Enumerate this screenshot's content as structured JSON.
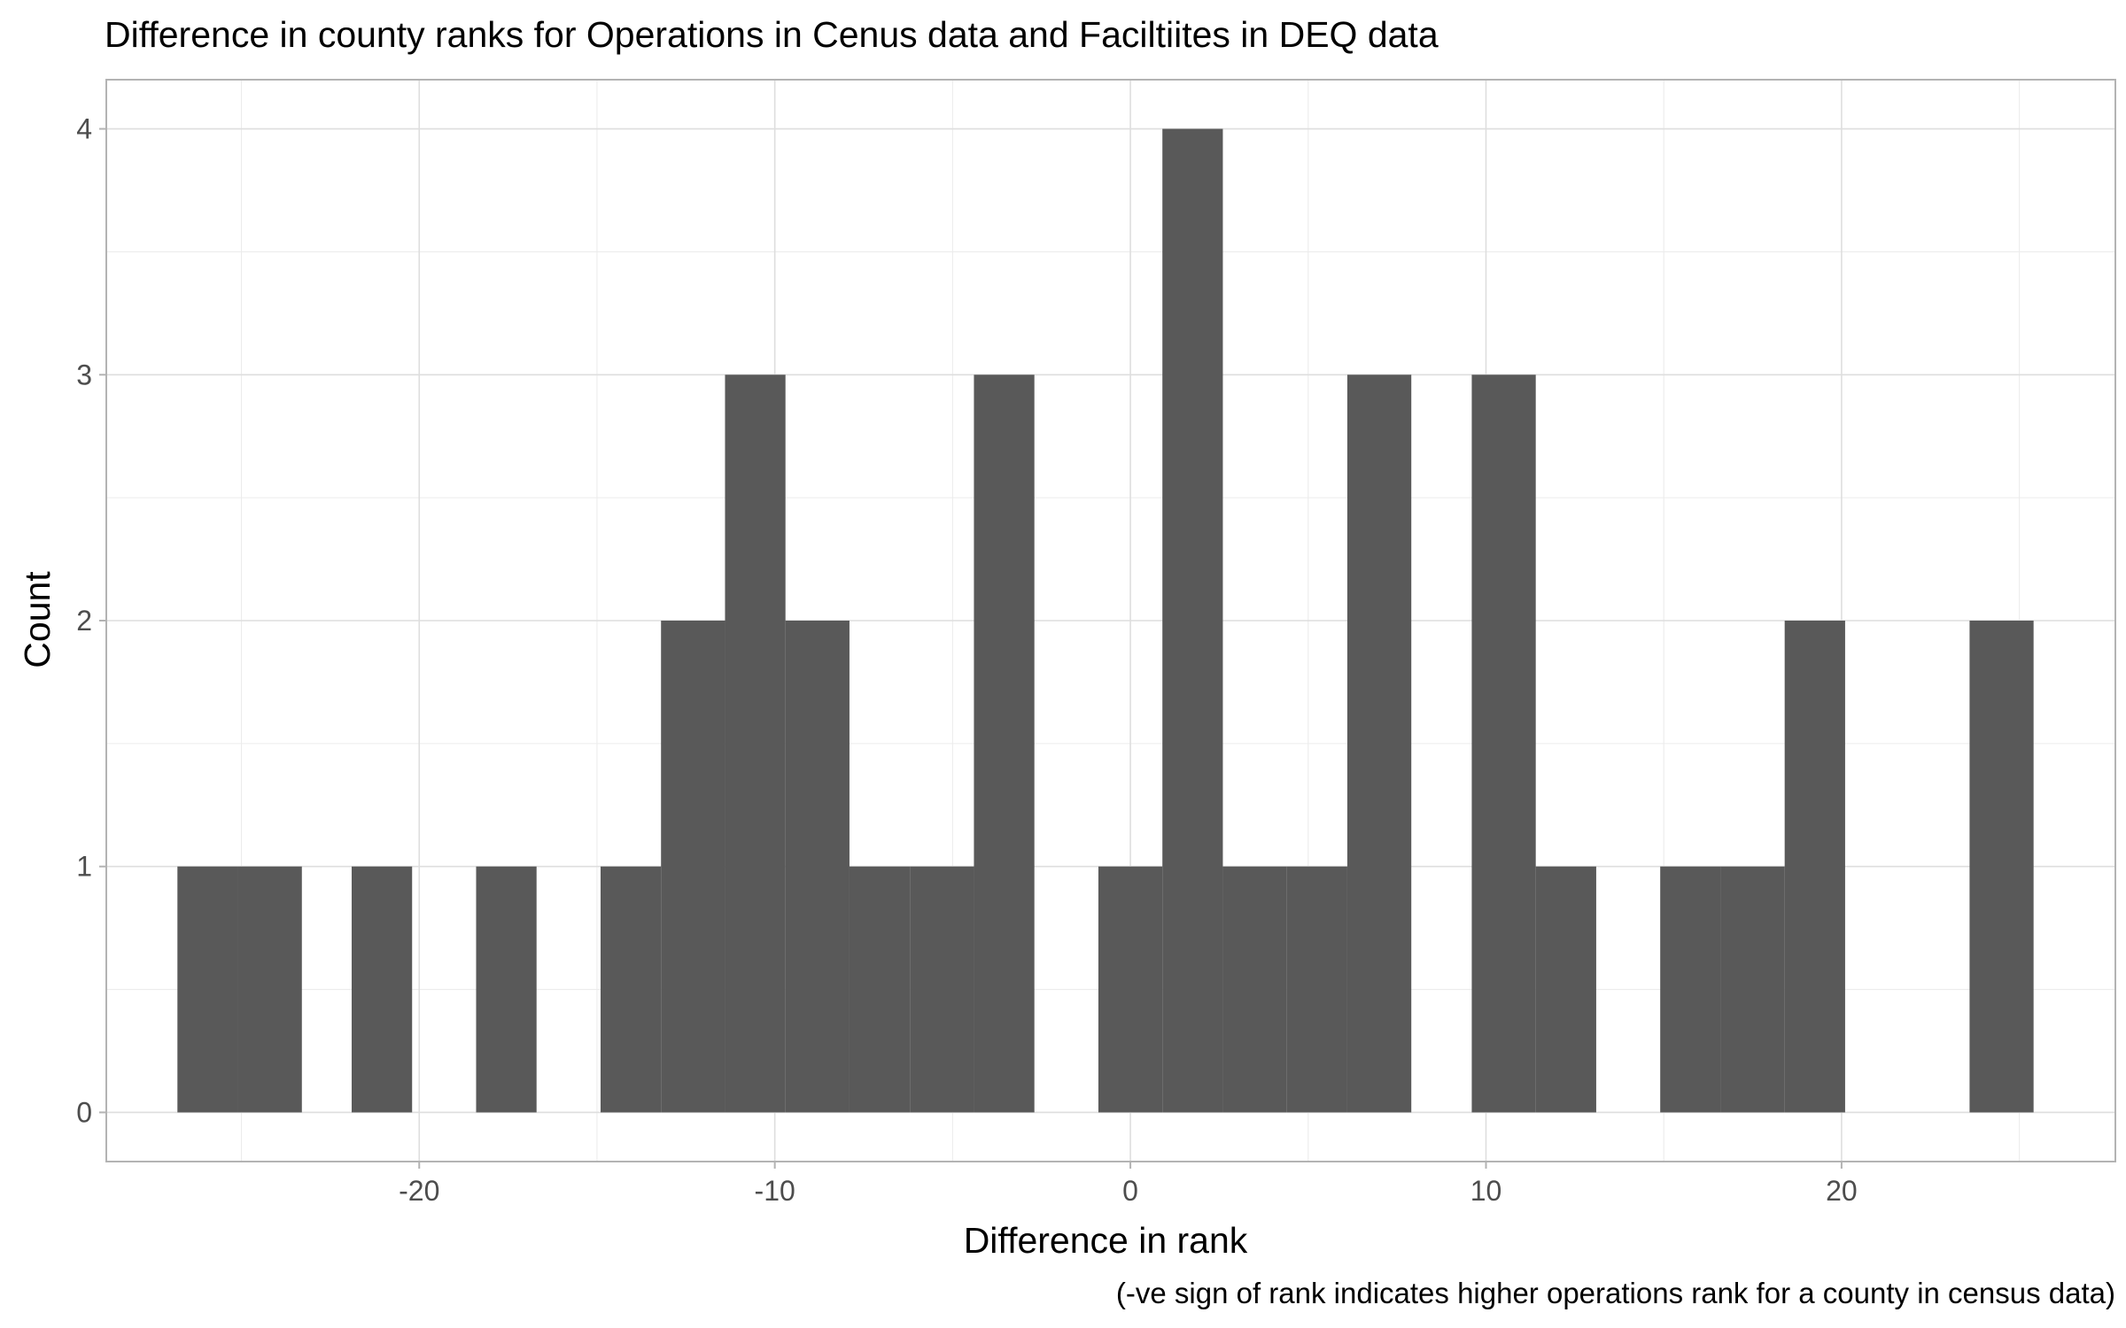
{
  "chart_data": {
    "type": "bar",
    "subtype": "histogram",
    "title": "Difference in county ranks for Operations in Cenus data and Faciltiites in DEQ data",
    "xlabel": "Difference in rank",
    "ylabel": "Count",
    "caption": "(-ve sign of rank indicates higher operations rank for a county in census data)",
    "xlim": [
      -28.8,
      27.7
    ],
    "ylim": [
      -0.2,
      4.2
    ],
    "x_ticks": [
      -20,
      -10,
      0,
      10,
      20
    ],
    "x_tick_labels": [
      "-20",
      "-10",
      "0",
      "10",
      "20"
    ],
    "y_ticks": [
      0,
      1,
      2,
      3,
      4
    ],
    "y_tick_labels": [
      "0",
      "1",
      "2",
      "3",
      "4"
    ],
    "grid": true,
    "bar_color": "#595959",
    "bins": [
      {
        "x0": -26.8,
        "x1": -25.1,
        "count": 1
      },
      {
        "x0": -25.1,
        "x1": -23.3,
        "count": 1
      },
      {
        "x0": -23.3,
        "x1": -21.9,
        "count": 0
      },
      {
        "x0": -21.9,
        "x1": -20.2,
        "count": 1
      },
      {
        "x0": -20.2,
        "x1": -18.4,
        "count": 0
      },
      {
        "x0": -18.4,
        "x1": -16.7,
        "count": 1
      },
      {
        "x0": -16.7,
        "x1": -14.9,
        "count": 0
      },
      {
        "x0": -14.9,
        "x1": -13.2,
        "count": 1
      },
      {
        "x0": -13.2,
        "x1": -11.4,
        "count": 2
      },
      {
        "x0": -11.4,
        "x1": -9.7,
        "count": 3
      },
      {
        "x0": -9.7,
        "x1": -7.9,
        "count": 2
      },
      {
        "x0": -7.9,
        "x1": -6.2,
        "count": 1
      },
      {
        "x0": -6.2,
        "x1": -4.4,
        "count": 1
      },
      {
        "x0": -4.4,
        "x1": -2.7,
        "count": 3
      },
      {
        "x0": -2.7,
        "x1": -0.9,
        "count": 0
      },
      {
        "x0": -0.9,
        "x1": 0.9,
        "count": 1
      },
      {
        "x0": 0.9,
        "x1": 2.6,
        "count": 4
      },
      {
        "x0": 2.6,
        "x1": 4.4,
        "count": 1
      },
      {
        "x0": 4.4,
        "x1": 6.1,
        "count": 1
      },
      {
        "x0": 6.1,
        "x1": 7.9,
        "count": 3
      },
      {
        "x0": 7.9,
        "x1": 9.6,
        "count": 0
      },
      {
        "x0": 9.6,
        "x1": 11.4,
        "count": 3
      },
      {
        "x0": 11.4,
        "x1": 13.1,
        "count": 1
      },
      {
        "x0": 13.1,
        "x1": 14.9,
        "count": 0
      },
      {
        "x0": 14.9,
        "x1": 16.6,
        "count": 1
      },
      {
        "x0": 16.6,
        "x1": 18.4,
        "count": 1
      },
      {
        "x0": 18.4,
        "x1": 20.1,
        "count": 2
      },
      {
        "x0": 20.1,
        "x1": 21.9,
        "count": 0
      },
      {
        "x0": 21.9,
        "x1": 23.6,
        "count": 0
      },
      {
        "x0": 23.6,
        "x1": 25.4,
        "count": 2
      }
    ]
  }
}
